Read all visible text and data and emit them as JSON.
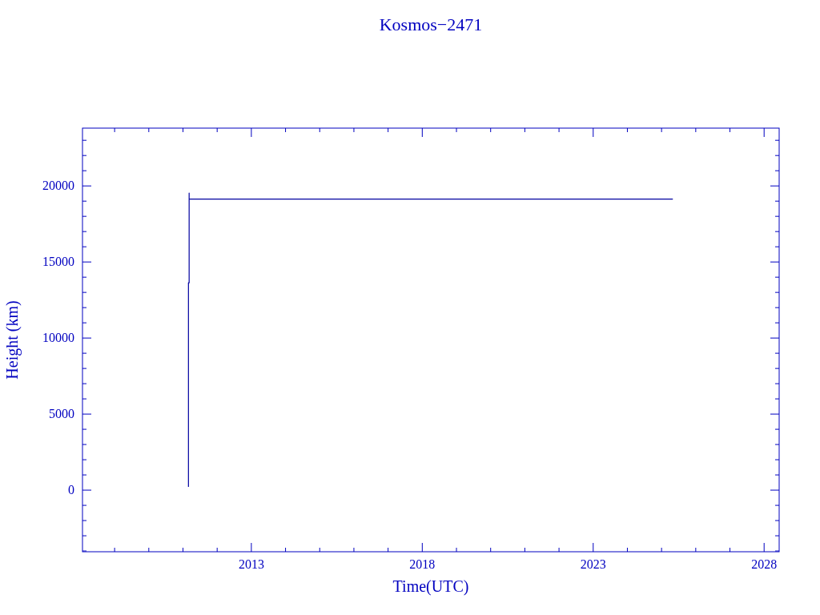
{
  "chart_data": {
    "type": "line",
    "title": "Kosmos−2471",
    "xlabel": "Time(UTC)",
    "ylabel": "Height (km)",
    "x": [
      2011.16,
      2011.16,
      2011.18,
      2011.18,
      2011.18,
      2025.33
    ],
    "values": [
      210,
      13630,
      13630,
      19530,
      19130,
      19130
    ],
    "color": "#0000a0",
    "xlim": [
      2008.06,
      2028.44
    ],
    "xticks": [
      {
        "value": 2009,
        "label": null
      },
      {
        "value": 2010,
        "label": null
      },
      {
        "value": 2011,
        "label": null
      },
      {
        "value": 2012,
        "label": null
      },
      2013,
      {
        "value": 2014,
        "label": null
      },
      {
        "value": 2015,
        "label": null
      },
      {
        "value": 2016,
        "label": null
      },
      {
        "value": 2017,
        "label": null
      },
      2018,
      {
        "value": 2019,
        "label": null
      },
      {
        "value": 2020,
        "label": null
      },
      {
        "value": 2021,
        "label": null
      },
      {
        "value": 2022,
        "label": null
      },
      2023,
      {
        "value": 2024,
        "label": null
      },
      {
        "value": 2025,
        "label": null
      },
      {
        "value": 2026,
        "label": null
      },
      {
        "value": 2027,
        "label": null
      },
      2028
    ],
    "ylim": [
      -4050,
      23800
    ],
    "yticks": [
      {
        "value": -4000,
        "label": null
      },
      {
        "value": -3000,
        "label": null
      },
      {
        "value": -2000,
        "label": null
      },
      {
        "value": -1000,
        "label": null
      },
      0,
      {
        "value": 1000,
        "label": null
      },
      {
        "value": 2000,
        "label": null
      },
      {
        "value": 3000,
        "label": null
      },
      {
        "value": 4000,
        "label": null
      },
      5000,
      {
        "value": 6000,
        "label": null
      },
      {
        "value": 7000,
        "label": null
      },
      {
        "value": 8000,
        "label": null
      },
      {
        "value": 9000,
        "label": null
      },
      10000,
      {
        "value": 11000,
        "label": null
      },
      {
        "value": 12000,
        "label": null
      },
      {
        "value": 13000,
        "label": null
      },
      {
        "value": 14000,
        "label": null
      },
      15000,
      {
        "value": 16000,
        "label": null
      },
      {
        "value": 17000,
        "label": null
      },
      {
        "value": 18000,
        "label": null
      },
      {
        "value": 19000,
        "label": null
      },
      20000,
      {
        "value": 21000,
        "label": null
      },
      {
        "value": 22000,
        "label": null
      },
      {
        "value": 23000,
        "label": null
      }
    ],
    "grid": false
  }
}
